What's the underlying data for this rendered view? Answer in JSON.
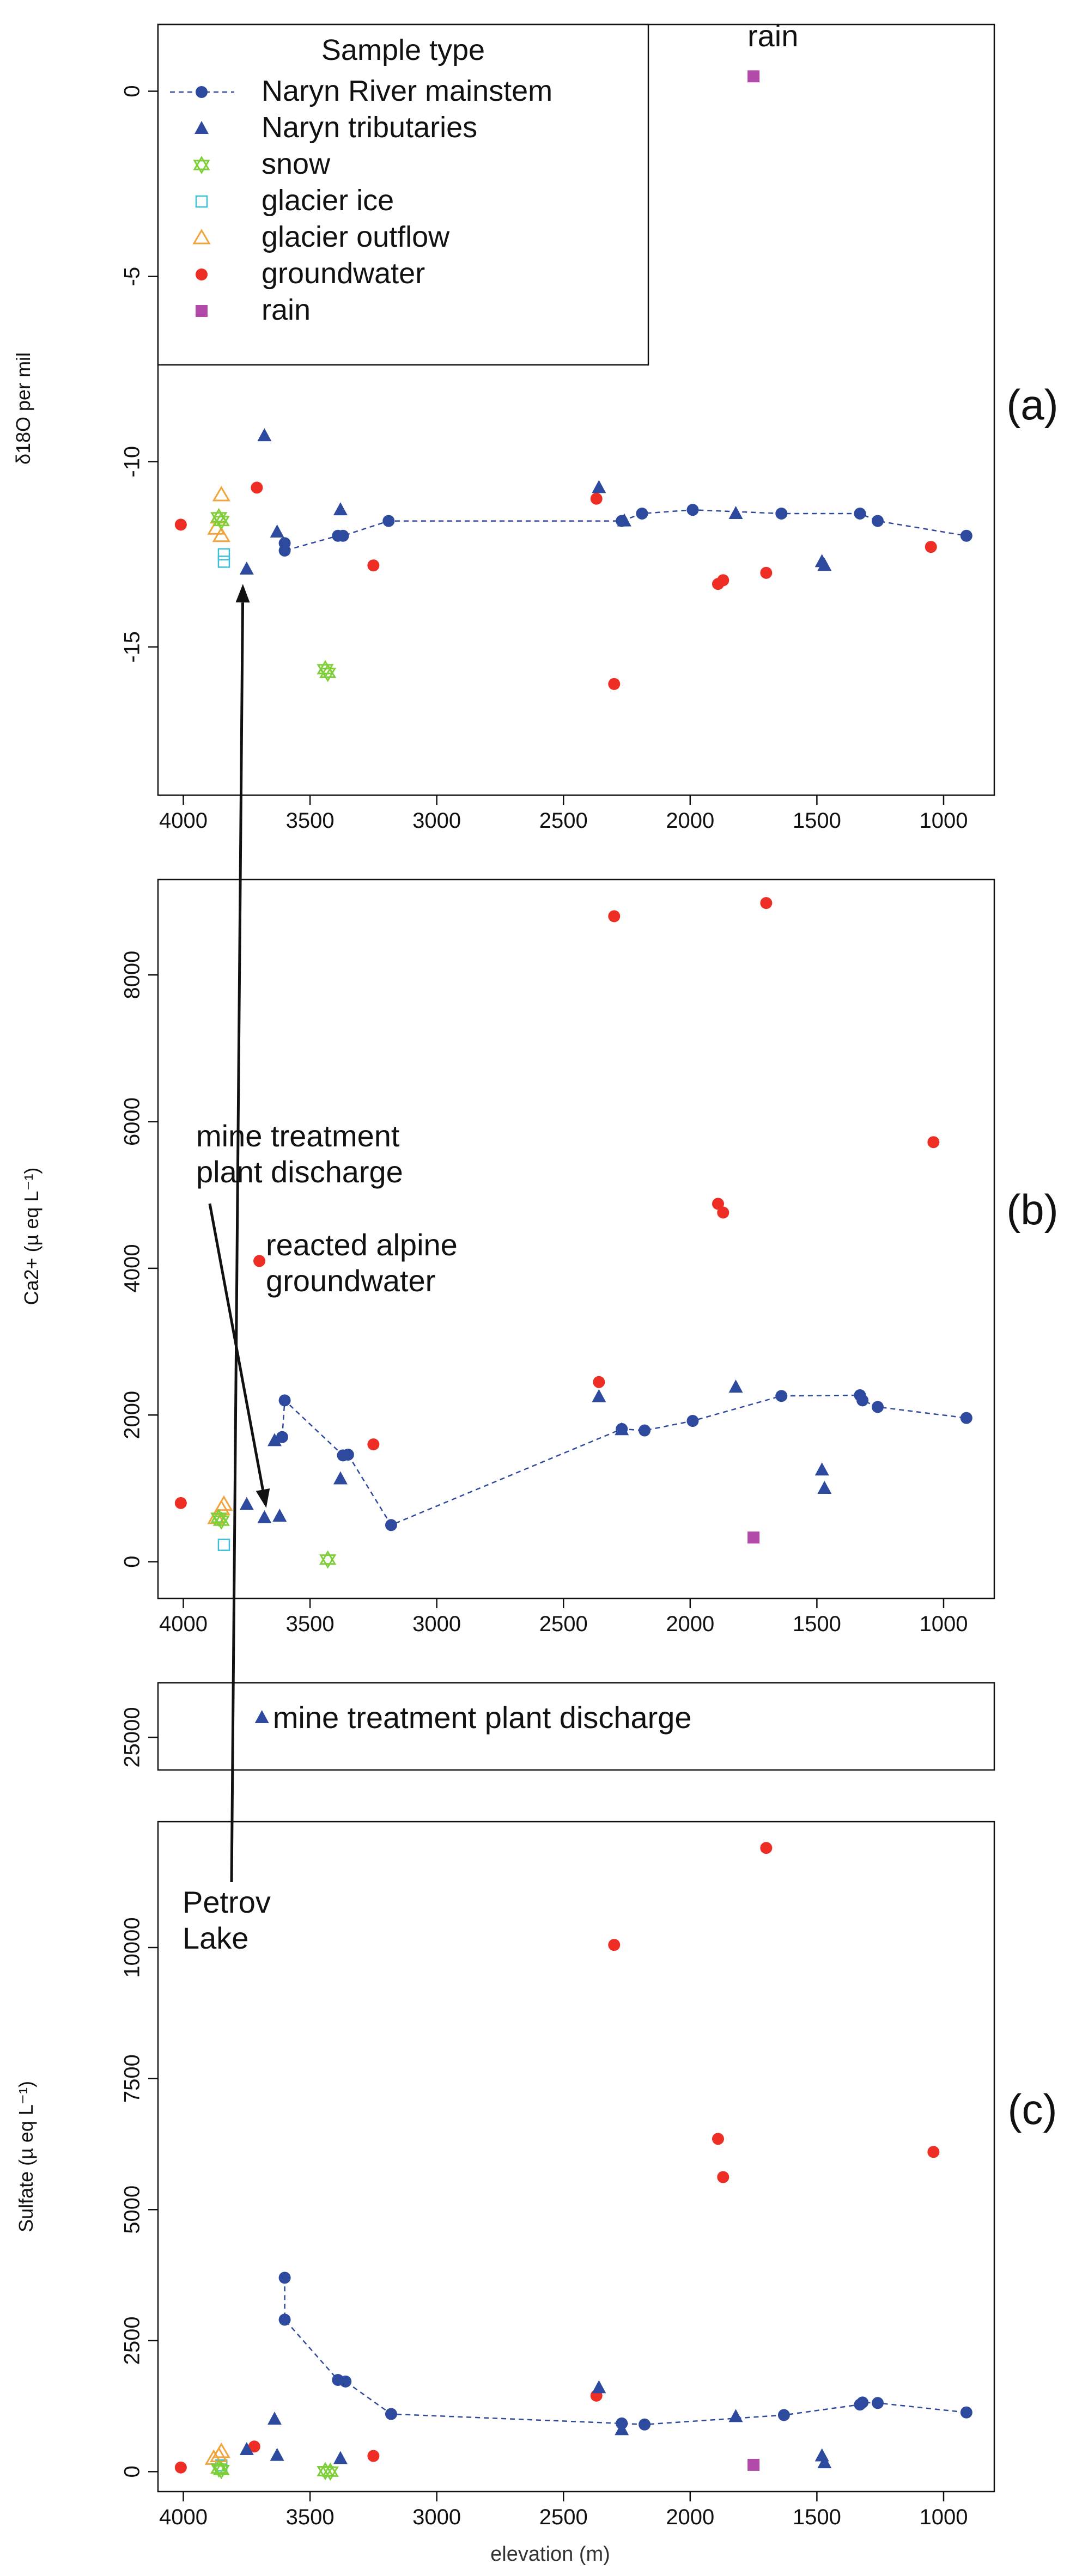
{
  "figure": {
    "xlabel": "elevation (m)",
    "colors": {
      "mainstem": "#2e4a9e",
      "tributary": "#2e4a9e",
      "snow": "#7fcf3a",
      "glacier_ice": "#3bbfd6",
      "glacier_outflow": "#f2a43c",
      "groundwater": "#ee2e24",
      "rain": "#b14aa8"
    }
  },
  "chart_data": [
    {
      "id": "a",
      "type": "scatter",
      "panel_label": "(a)",
      "ylabel": "δ18O per mil",
      "xlim": [
        4100,
        800
      ],
      "ylim": [
        -19,
        1.8
      ],
      "x_ticks": [
        4000,
        3500,
        3000,
        2500,
        2000,
        1500,
        1000
      ],
      "y_ticks": [
        0,
        -5,
        -10,
        -15
      ],
      "legend": {
        "title": "Sample type",
        "placement": "top-left",
        "entries": [
          {
            "key": "mainstem",
            "label": "Naryn River mainstem"
          },
          {
            "key": "tributary",
            "label": "Naryn tributaries"
          },
          {
            "key": "snow",
            "label": "snow"
          },
          {
            "key": "glacier_ice",
            "label": "glacier ice"
          },
          {
            "key": "glacier_outflow",
            "label": "glacier outflow"
          },
          {
            "key": "groundwater",
            "label": "groundwater"
          },
          {
            "key": "rain",
            "label": "rain"
          }
        ]
      },
      "annotations": [
        {
          "text": [
            "Petrov",
            "Lake"
          ],
          "x": 3960,
          "y": -16.8,
          "arrow_to": [
            3765,
            -13.3
          ]
        },
        {
          "text": [
            "rain"
          ],
          "x": 1710,
          "y": 0.2
        }
      ],
      "series": [
        {
          "key": "mainstem",
          "name": "Naryn River mainstem",
          "points": [
            [
              3600,
              -12.2
            ],
            [
              3600,
              -12.4
            ],
            [
              3390,
              -12.0
            ],
            [
              3370,
              -12.0
            ],
            [
              3190,
              -11.6
            ],
            [
              2270,
              -11.6
            ],
            [
              2190,
              -11.4
            ],
            [
              1990,
              -11.3
            ],
            [
              1640,
              -11.4
            ],
            [
              1330,
              -11.4
            ],
            [
              1260,
              -11.6
            ],
            [
              910,
              -12.0
            ]
          ]
        },
        {
          "key": "tributary",
          "name": "Naryn tributaries",
          "points": [
            [
              3680,
              -9.3
            ],
            [
              3630,
              -11.9
            ],
            [
              3750,
              -12.9
            ],
            [
              3380,
              -11.3
            ],
            [
              2360,
              -10.7
            ],
            [
              2260,
              -11.6
            ],
            [
              1820,
              -11.4
            ],
            [
              1480,
              -12.7
            ],
            [
              1470,
              -12.8
            ]
          ]
        },
        {
          "key": "snow",
          "name": "snow",
          "points": [
            [
              3860,
              -11.5
            ],
            [
              3850,
              -11.6
            ],
            [
              3440,
              -15.6
            ],
            [
              3430,
              -15.7
            ]
          ]
        },
        {
          "key": "glacier_ice",
          "name": "glacier ice",
          "points": [
            [
              3840,
              -12.5
            ],
            [
              3840,
              -12.7
            ]
          ]
        },
        {
          "key": "glacier_outflow",
          "name": "glacier outflow",
          "points": [
            [
              3850,
              -10.9
            ],
            [
              3860,
              -11.5
            ],
            [
              3870,
              -11.8
            ],
            [
              3850,
              -12.0
            ]
          ]
        },
        {
          "key": "groundwater",
          "name": "groundwater",
          "points": [
            [
              4010,
              -11.7
            ],
            [
              3710,
              -10.7
            ],
            [
              3250,
              -12.8
            ],
            [
              2370,
              -11.0
            ],
            [
              2300,
              -16.0
            ],
            [
              1890,
              -13.3
            ],
            [
              1870,
              -13.2
            ],
            [
              1700,
              -13.0
            ],
            [
              1050,
              -12.3
            ]
          ]
        },
        {
          "key": "rain",
          "name": "rain",
          "points": [
            [
              1750,
              0.4
            ]
          ]
        }
      ]
    },
    {
      "id": "b",
      "type": "scatter",
      "panel_label": "(b)",
      "ylabel": "Ca2+ (µ eq L⁻¹)",
      "xlim": [
        4100,
        800
      ],
      "ylim": [
        -500,
        9300
      ],
      "x_ticks": [
        4000,
        3500,
        3000,
        2500,
        2000,
        1500,
        1000
      ],
      "y_ticks": [
        0,
        2000,
        4000,
        6000,
        8000
      ],
      "annotations": [
        {
          "text": [
            "mine treatment",
            "plant discharge"
          ],
          "x": 3980,
          "y": 5650,
          "arrow_to": [
            3660,
            600
          ]
        },
        {
          "text": [
            "reacted alpine",
            "groundwater"
          ],
          "x": 3680,
          "y": 4300
        }
      ],
      "series": [
        {
          "key": "mainstem",
          "name": "Naryn River mainstem",
          "points": [
            [
              3610,
              1700
            ],
            [
              3600,
              2200
            ],
            [
              3370,
              1450
            ],
            [
              3350,
              1460
            ],
            [
              3180,
              500
            ],
            [
              2270,
              1810
            ],
            [
              2180,
              1790
            ],
            [
              1990,
              1920
            ],
            [
              1640,
              2260
            ],
            [
              1330,
              2270
            ],
            [
              1320,
              2200
            ],
            [
              1260,
              2110
            ],
            [
              910,
              1960
            ]
          ]
        },
        {
          "key": "tributary",
          "name": "Naryn tributaries",
          "points": [
            [
              3750,
              780
            ],
            [
              3680,
              600
            ],
            [
              3620,
              620
            ],
            [
              3640,
              1650
            ],
            [
              3380,
              1130
            ],
            [
              2360,
              2250
            ],
            [
              2270,
              1800
            ],
            [
              1820,
              2380
            ],
            [
              1480,
              1250
            ],
            [
              1470,
              1000
            ]
          ]
        },
        {
          "key": "snow",
          "name": "snow",
          "points": [
            [
              3860,
              600
            ],
            [
              3850,
              560
            ],
            [
              3430,
              30
            ]
          ]
        },
        {
          "key": "glacier_ice",
          "name": "glacier ice",
          "points": [
            [
              3840,
              230
            ]
          ]
        },
        {
          "key": "glacier_outflow",
          "name": "glacier outflow",
          "points": [
            [
              3870,
              600
            ],
            [
              3850,
              720
            ],
            [
              3840,
              780
            ]
          ]
        },
        {
          "key": "groundwater",
          "name": "groundwater",
          "points": [
            [
              4010,
              800
            ],
            [
              3700,
              4100
            ],
            [
              3250,
              1600
            ],
            [
              2360,
              2450
            ],
            [
              2300,
              8800
            ],
            [
              1890,
              4880
            ],
            [
              1870,
              4760
            ],
            [
              1700,
              8980
            ],
            [
              1040,
              5720
            ]
          ]
        },
        {
          "key": "rain",
          "name": "rain",
          "points": [
            [
              1750,
              330
            ]
          ]
        }
      ]
    },
    {
      "id": "c",
      "type": "scatter",
      "panel_label": "(c)",
      "ylabel": "Sulfate (µ eq L⁻¹)",
      "xlim": [
        4100,
        800
      ],
      "ylim": [
        -380,
        12400
      ],
      "x_ticks": [
        4000,
        3500,
        3000,
        2500,
        2000,
        1500,
        1000
      ],
      "y_ticks": [
        0,
        2500,
        5000,
        7500,
        10000
      ],
      "break_panel": {
        "ylim": [
          23500,
          27500
        ],
        "y_ticks": [
          25000
        ],
        "annotation": "mine treatment plant discharge",
        "points": [
          {
            "key": "tributary",
            "x": 3690,
            "y": 25900
          }
        ]
      },
      "series": [
        {
          "key": "mainstem",
          "name": "Naryn River mainstem",
          "points": [
            [
              3600,
              3700
            ],
            [
              3600,
              2900
            ],
            [
              3390,
              1750
            ],
            [
              3360,
              1720
            ],
            [
              3180,
              1100
            ],
            [
              2270,
              920
            ],
            [
              2180,
              900
            ],
            [
              1630,
              1080
            ],
            [
              1330,
              1280
            ],
            [
              1320,
              1320
            ],
            [
              1260,
              1310
            ],
            [
              910,
              1130
            ]
          ]
        },
        {
          "key": "tributary",
          "name": "Naryn tributaries",
          "points": [
            [
              3750,
              420
            ],
            [
              3640,
              1000
            ],
            [
              3630,
              310
            ],
            [
              3380,
              250
            ],
            [
              2360,
              1600
            ],
            [
              2270,
              800
            ],
            [
              1820,
              1050
            ],
            [
              1480,
              300
            ],
            [
              1470,
              170
            ]
          ]
        },
        {
          "key": "snow",
          "name": "snow",
          "points": [
            [
              3860,
              60
            ],
            [
              3850,
              30
            ],
            [
              3440,
              10
            ],
            [
              3420,
              0
            ]
          ]
        },
        {
          "key": "glacier_ice",
          "name": "glacier ice",
          "points": [
            [
              3850,
              120
            ]
          ]
        },
        {
          "key": "glacier_outflow",
          "name": "glacier outflow",
          "points": [
            [
              3880,
              250
            ],
            [
              3860,
              300
            ],
            [
              3850,
              380
            ]
          ]
        },
        {
          "key": "groundwater",
          "name": "groundwater",
          "points": [
            [
              4010,
              80
            ],
            [
              3720,
              480
            ],
            [
              3250,
              300
            ],
            [
              2370,
              1450
            ],
            [
              2300,
              10050
            ],
            [
              1890,
              6350
            ],
            [
              1870,
              5620
            ],
            [
              1700,
              11900
            ],
            [
              1040,
              6100
            ]
          ]
        },
        {
          "key": "rain",
          "name": "rain",
          "points": [
            [
              1750,
              130
            ]
          ]
        }
      ]
    }
  ]
}
